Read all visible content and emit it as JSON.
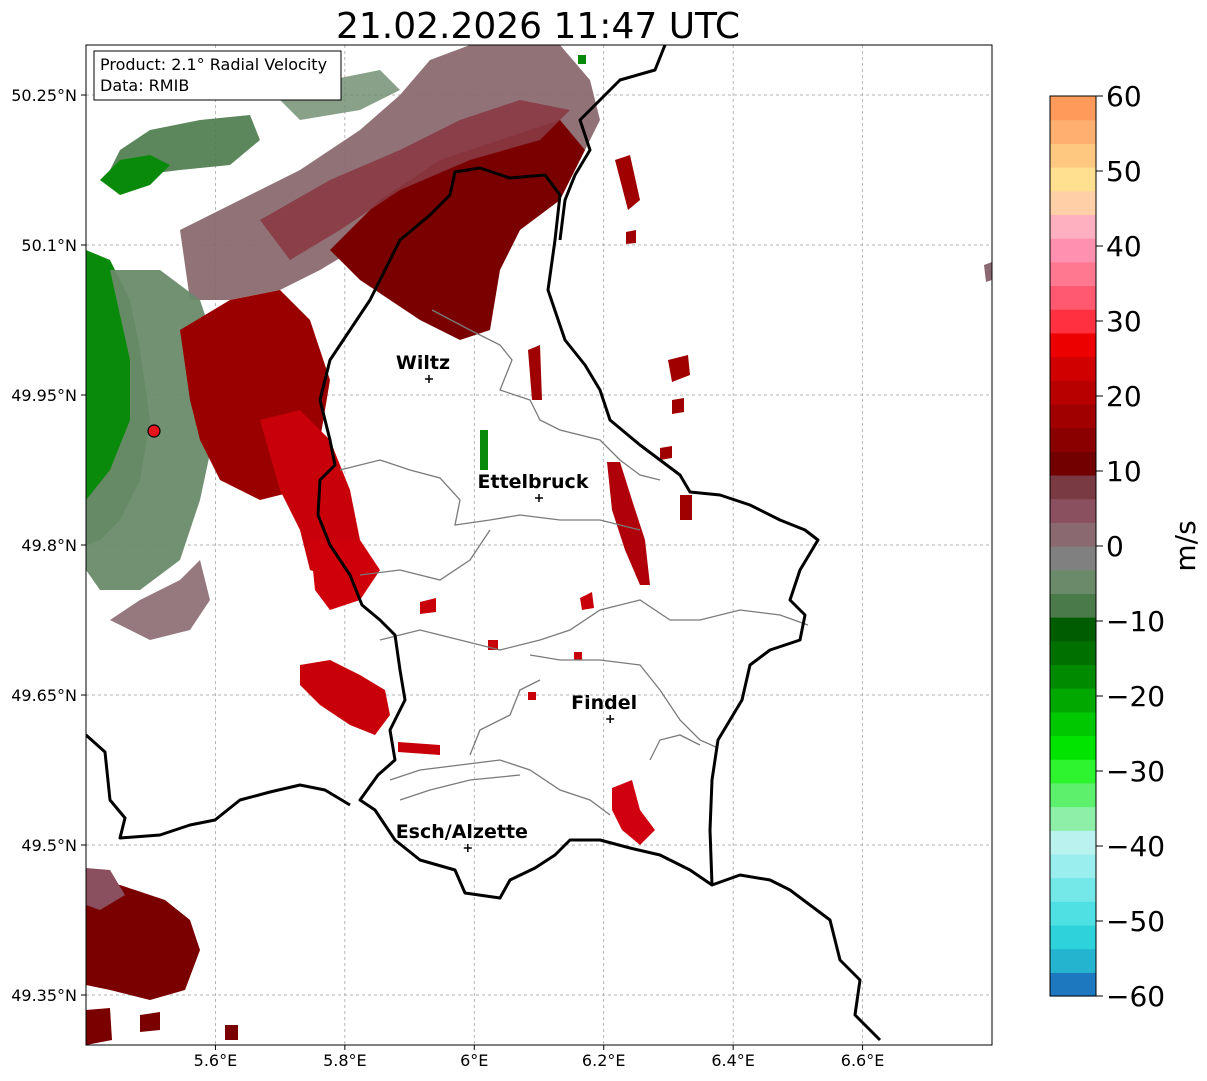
{
  "title": "21.02.2026 11:47 UTC",
  "info": {
    "product": "Product: 2.1° Radial Velocity",
    "data": "Data: RMIB"
  },
  "lat_ticks": [
    "50.25°N",
    "50.1°N",
    "49.95°N",
    "49.8°N",
    "49.65°N",
    "49.5°N",
    "49.35°N"
  ],
  "lon_ticks": [
    "5.6°E",
    "5.8°E",
    "6°E",
    "6.2°E",
    "6.4°E",
    "6.6°E"
  ],
  "cities": [
    {
      "name": "Wiltz",
      "lon": 5.93,
      "lat": 49.966
    },
    {
      "name": "Ettelbruck",
      "lon": 6.1,
      "lat": 49.847
    },
    {
      "name": "Findel",
      "lon": 6.21,
      "lat": 49.626
    },
    {
      "name": "Esch/Alzette",
      "lon": 5.99,
      "lat": 49.497
    }
  ],
  "radar_site": {
    "lon": 5.505,
    "lat": 49.914,
    "color": "#e8141c"
  },
  "colorbar": {
    "label": "m/s",
    "min": -60,
    "max": 60,
    "ticks": [
      "60",
      "50",
      "40",
      "30",
      "20",
      "10",
      "0",
      "−10",
      "−20",
      "−30",
      "−40",
      "−50",
      "−60"
    ],
    "colors": [
      "#1e78c0",
      "#25b4d0",
      "#2ed2da",
      "#4ee0e2",
      "#74e8e8",
      "#9aeeee",
      "#baf2f0",
      "#8ef0a8",
      "#5cf06c",
      "#2ef430",
      "#00e400",
      "#00c800",
      "#00a800",
      "#008a00",
      "#007000",
      "#005c00",
      "#4a7a4a",
      "#6a8a6a",
      "#808080",
      "#8a6a70",
      "#8a5060",
      "#7a3a44",
      "#720000",
      "#8a0000",
      "#a00000",
      "#b80000",
      "#d00000",
      "#ec0000",
      "#ff3040",
      "#ff5870",
      "#ff7890",
      "#ff90b0",
      "#ffb0c0",
      "#ffd0a8",
      "#ffe090",
      "#ffc880",
      "#ffb070",
      "#ff9a5a"
    ]
  },
  "palette": {
    "dark_red": "#7a0000",
    "red": "#c8000a",
    "pink_gray": "#8a6a70",
    "gray_green": "#6a8a6a",
    "green": "#0a8a0a",
    "pink": "#ff7ab0"
  }
}
